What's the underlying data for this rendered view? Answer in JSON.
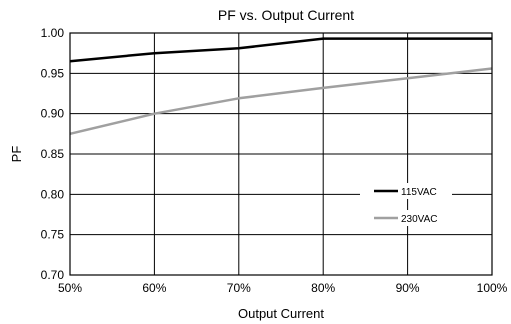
{
  "chart_data": {
    "type": "line",
    "title": "PF vs. Output Current",
    "xlabel": "Output Current",
    "ylabel": "PF",
    "x": [
      50,
      60,
      70,
      80,
      90,
      100
    ],
    "x_tick_labels": [
      "50%",
      "60%",
      "70%",
      "80%",
      "90%",
      "100%"
    ],
    "xlim": [
      50,
      100
    ],
    "y_tick_labels": [
      "0.70",
      "0.75",
      "0.80",
      "0.85",
      "0.90",
      "0.95",
      "1.00"
    ],
    "y_ticks": [
      0.7,
      0.75,
      0.8,
      0.85,
      0.9,
      0.95,
      1.0
    ],
    "ylim": [
      0.7,
      1.0
    ],
    "grid": true,
    "legend_position": "lower-right",
    "series": [
      {
        "name": "115VAC",
        "color": "#000000",
        "points": [
          [
            50,
            0.965
          ],
          [
            60,
            0.975
          ],
          [
            70,
            0.981
          ],
          [
            80,
            0.993
          ],
          [
            90,
            0.993
          ],
          [
            100,
            0.993
          ]
        ]
      },
      {
        "name": "230VAC",
        "color": "#a0a0a0",
        "points": [
          [
            50,
            0.875
          ],
          [
            60,
            0.9
          ],
          [
            70,
            0.919
          ],
          [
            80,
            0.932
          ],
          [
            90,
            0.944
          ],
          [
            100,
            0.956
          ]
        ]
      }
    ]
  }
}
